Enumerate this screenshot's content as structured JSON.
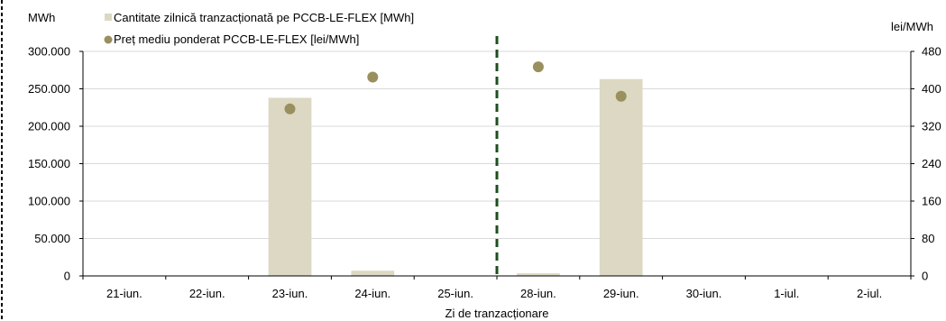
{
  "chart_data": {
    "type": "bar",
    "categories": [
      "21-iun.",
      "22-iun.",
      "23-iun.",
      "24-iun.",
      "25-iun.",
      "28-iun.",
      "29-iun.",
      "30-iun.",
      "1-iul.",
      "2-iul."
    ],
    "series": [
      {
        "name": "Cantitate zilnică tranzacționată pe PCCB-LE-FLEX [MWh]",
        "kind": "bar",
        "axis": "left",
        "color": "#ddd8c3",
        "values": [
          0,
          0,
          238000,
          7000,
          0,
          3500,
          263000,
          0,
          0,
          0
        ]
      },
      {
        "name": "Preț mediu ponderat PCCB-LE-FLEX [lei/MWh]",
        "kind": "scatter",
        "axis": "right",
        "color": "#9a8f5f",
        "values": [
          null,
          null,
          357,
          425,
          null,
          447,
          384,
          null,
          null,
          null
        ]
      }
    ],
    "y_left": {
      "unit": "MWh",
      "ylim": [
        0,
        300000
      ],
      "ticks": [
        0,
        50000,
        100000,
        150000,
        200000,
        250000,
        300000
      ],
      "tick_labels": [
        "0",
        "50.000",
        "100.000",
        "150.000",
        "200.000",
        "250.000",
        "300.000"
      ]
    },
    "y_right": {
      "unit": "lei/MWh",
      "ylim": [
        0,
        480
      ],
      "ticks": [
        0,
        80,
        160,
        240,
        320,
        400,
        480
      ],
      "tick_labels": [
        "0",
        "80",
        "160",
        "240",
        "320",
        "400",
        "480"
      ]
    },
    "xlabel": "Zi de tranzacționare",
    "divider_after_category": "25-iun.",
    "divider_color": "#1e4d1e",
    "gridlines": true,
    "grid_color": "#d9d9d9",
    "legend_position": "top-left"
  }
}
